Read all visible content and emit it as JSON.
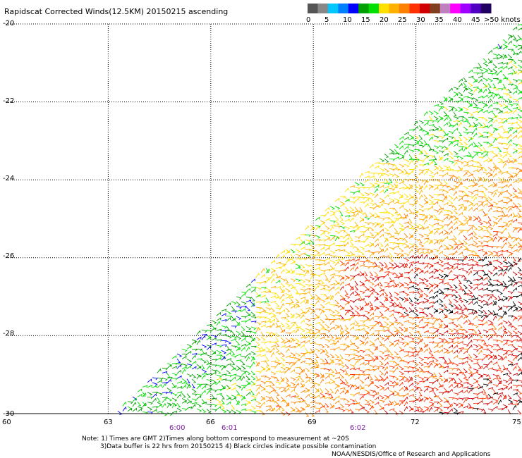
{
  "title": "Rapidscat Corrected Winds(12.5KM) 20150215 ascending",
  "colorbar": {
    "labels": [
      "0",
      "5",
      "10",
      "15",
      "20",
      "25",
      "30",
      "35",
      "40",
      "45",
      ">50 knots"
    ],
    "colors": [
      "#555555",
      "#888888",
      "#00c8ff",
      "#0080ff",
      "#0000ff",
      "#00a000",
      "#00e000",
      "#ffe000",
      "#ffb000",
      "#ff8000",
      "#ff3000",
      "#d00000",
      "#804020",
      "#c080c0",
      "#ff00ff",
      "#a000ff",
      "#5000c0",
      "#200060"
    ]
  },
  "axes": {
    "lat_labels": [
      "-20",
      "-22",
      "-24",
      "-26",
      "-28",
      "-30"
    ],
    "lon_labels": [
      "60",
      "63",
      "66",
      "69",
      "72",
      "75"
    ]
  },
  "time_labels": [
    "6:00",
    "6:01",
    "6:02"
  ],
  "notes": {
    "line1": "Note: 1) Times are GMT 2)Times along bottom correspond to measurement at ~20S",
    "line2": "3)Data buffer is 22 hrs from 20150215 4) Black circles indicate possible contamination",
    "line3": "NOAA/NESDIS/Office of Research and Applications"
  },
  "chart_data": {
    "type": "wind-barb-map",
    "x_range": [
      60,
      75
    ],
    "y_range": [
      -30,
      -20
    ],
    "x_ticks": [
      60,
      63,
      66,
      69,
      72,
      75
    ],
    "y_ticks": [
      -20,
      -22,
      -24,
      -26,
      -28,
      -30
    ],
    "grid": true
  }
}
